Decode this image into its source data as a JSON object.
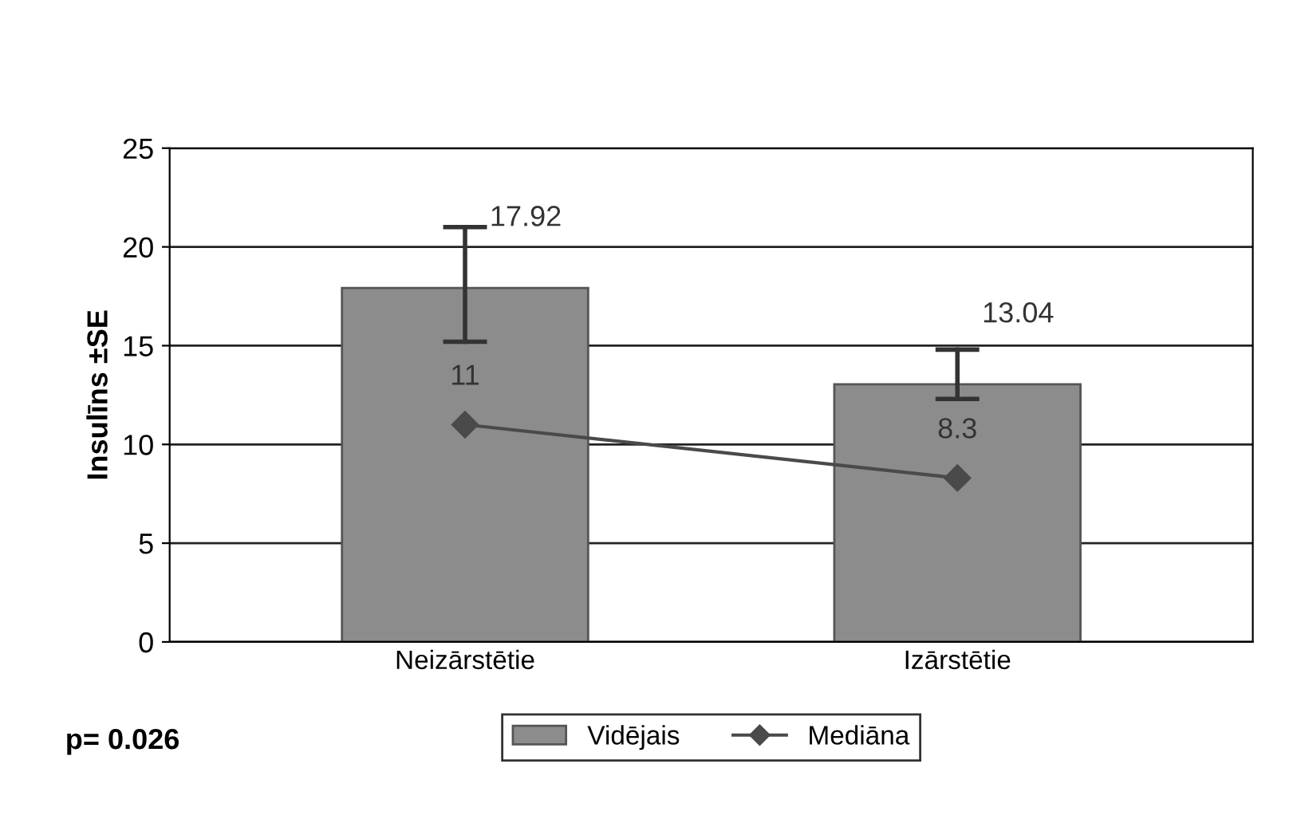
{
  "chart_data": {
    "type": "bar",
    "ylabel": "Insulīns ±SE",
    "categories": [
      "Neizārstētie",
      "Izārstētie"
    ],
    "series": [
      {
        "name": "Vidējais",
        "color": "#8c8c8c",
        "values": [
          17.92,
          13.04
        ],
        "errors": [
          [
            15.2,
            21.0
          ],
          [
            12.3,
            14.8
          ]
        ]
      },
      {
        "name": "Mediāna",
        "type": "line",
        "color": "#4a4a4a",
        "values": [
          11,
          8.3
        ],
        "marker": "diamond"
      }
    ],
    "ylim": [
      0,
      25
    ],
    "yticks": [
      0,
      5,
      10,
      15,
      20,
      25
    ],
    "grid": "y",
    "legend": "bottom",
    "data_labels": true,
    "annotations": [
      "p= 0.026"
    ]
  }
}
